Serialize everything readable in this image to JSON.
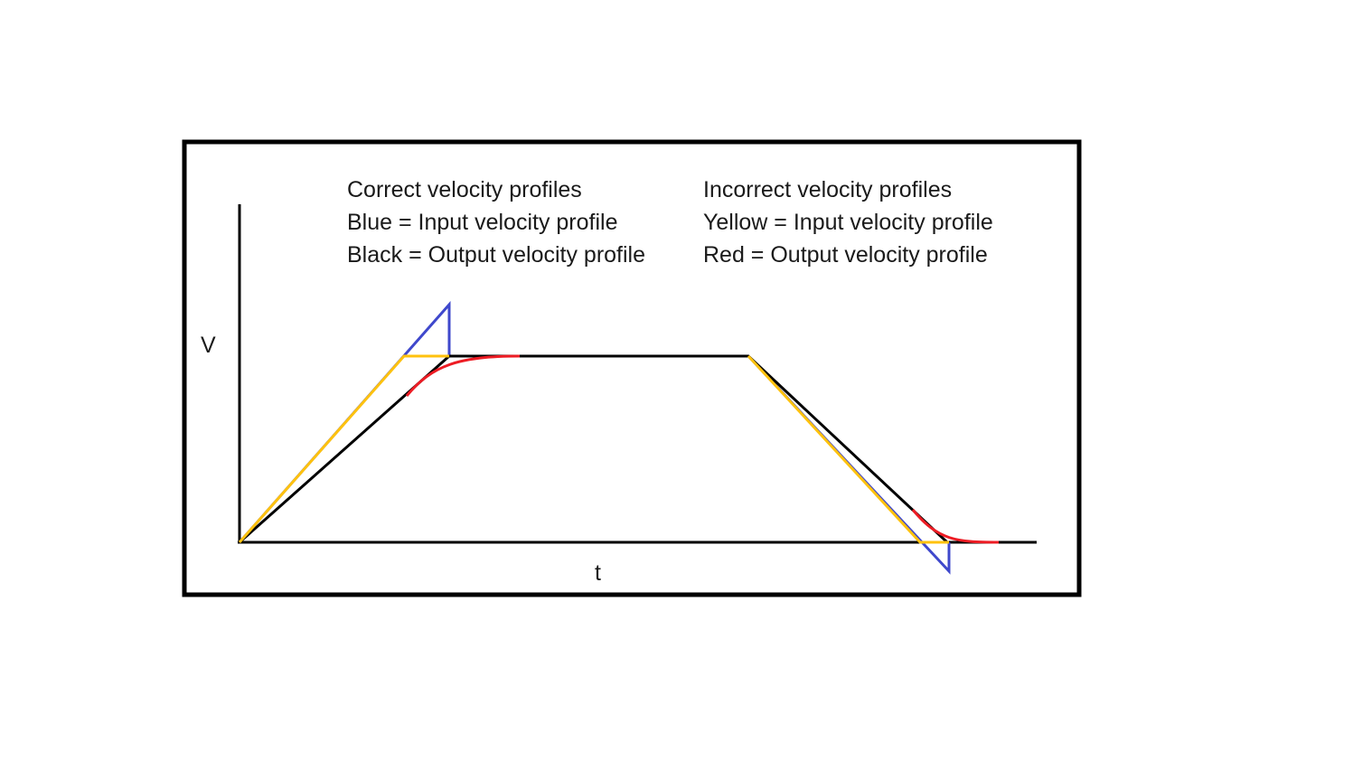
{
  "legend": {
    "correct": {
      "title": "Correct velocity profiles",
      "lines": [
        "Blue = Input velocity profile",
        "Black = Output velocity profile"
      ]
    },
    "incorrect": {
      "title": "Incorrect velocity profiles",
      "lines": [
        "Yellow = Input velocity profile",
        "Red = Output velocity profile"
      ]
    }
  },
  "axes": {
    "y_label": "V",
    "x_label": "t"
  }
}
